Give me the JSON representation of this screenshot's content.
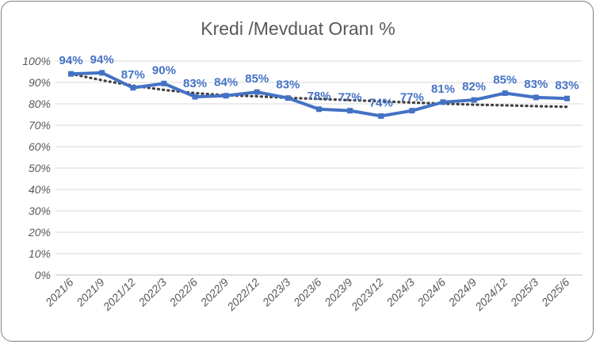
{
  "chart_data": {
    "type": "line",
    "title": "Kredi /Mevduat Oranı %",
    "categories": [
      "2021/6",
      "2021/9",
      "2021/12",
      "2022/3",
      "2022/6",
      "2022/9",
      "2022/12",
      "2023/3",
      "2023/6",
      "2023/9",
      "2023/12",
      "2024/3",
      "2024/6",
      "2024/9",
      "2024/12",
      "2025/3",
      "2025/6"
    ],
    "series": [
      {
        "values": [
          94,
          94.5,
          87.5,
          89.5,
          83.3,
          83.8,
          85.5,
          82.7,
          77.5,
          76.8,
          74.3,
          76.8,
          80.8,
          81.8,
          85.0,
          83.0,
          82.5
        ],
        "data_labels": [
          "94%",
          "94%",
          "87%",
          "90%",
          "83%",
          "84%",
          "85%",
          "83%",
          "78%",
          "77%",
          "74%",
          "77%",
          "81%",
          "82%",
          "85%",
          "83%",
          "83%"
        ],
        "color": "#4472c4",
        "style": "solid",
        "markers": "square"
      },
      {
        "values": [
          94,
          91,
          88.5,
          86.5,
          85,
          84,
          83.5,
          82.8,
          82.3,
          81.7,
          81.2,
          80.6,
          80.1,
          79.6,
          79.3,
          78.9,
          78.6
        ],
        "color": "#404040",
        "style": "dotted",
        "trendline": true
      }
    ],
    "yticks": [
      "0%",
      "10%",
      "20%",
      "30%",
      "40%",
      "50%",
      "60%",
      "70%",
      "80%",
      "90%",
      "100%"
    ],
    "ylim": [
      0,
      100
    ],
    "xlabel": "",
    "ylabel": "",
    "grid": true,
    "legend": "none"
  }
}
